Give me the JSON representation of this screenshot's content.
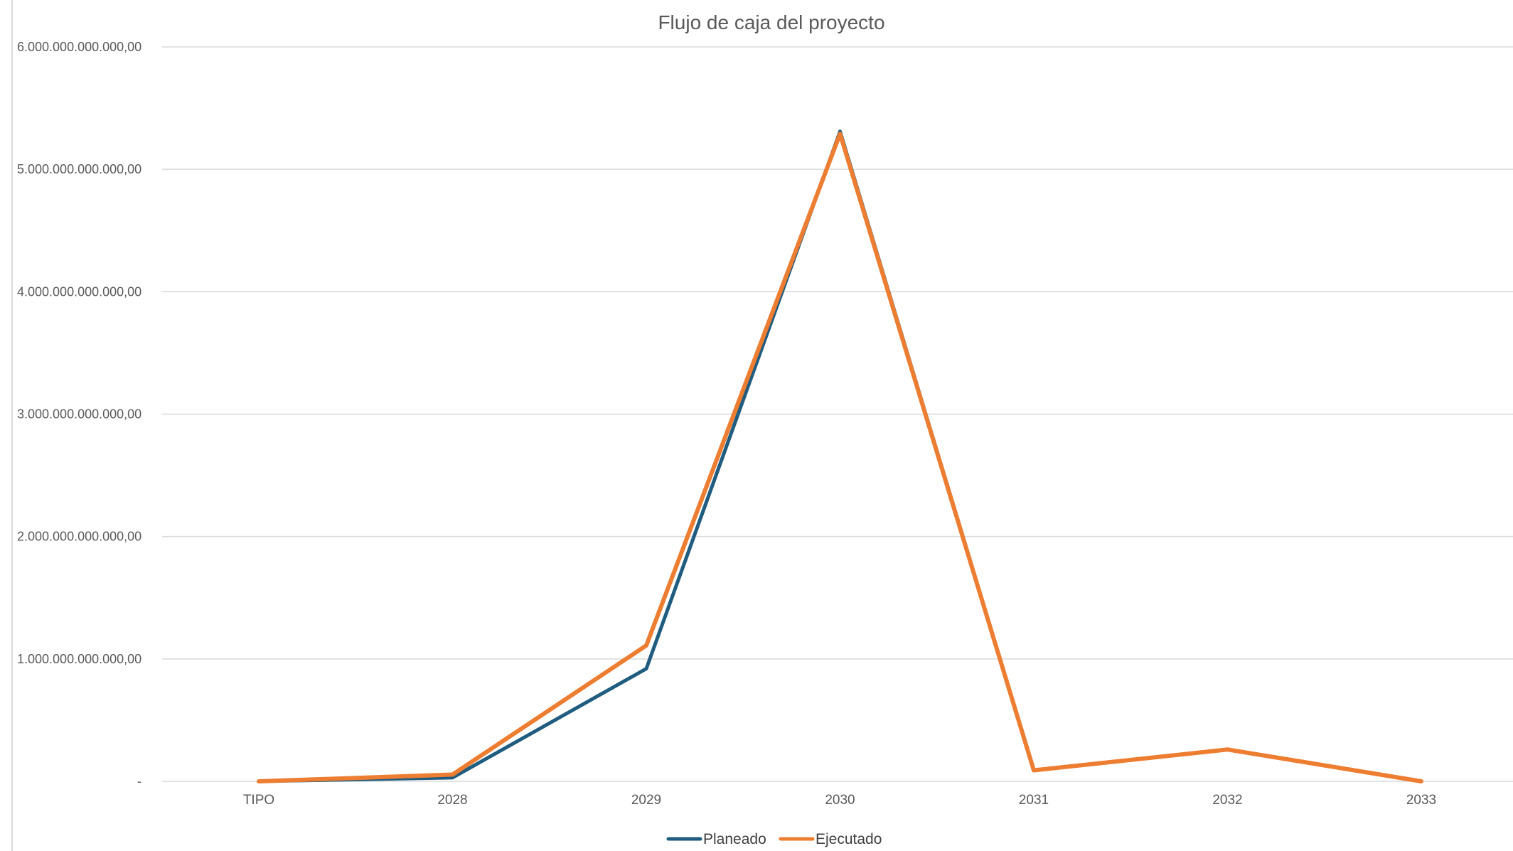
{
  "chart_data": {
    "type": "line",
    "title": "Flujo de caja del proyecto",
    "xlabel": "",
    "ylabel": "",
    "categories": [
      "TIPO",
      "2028",
      "2029",
      "2030",
      "2031",
      "2032",
      "2033"
    ],
    "ylim": [
      0,
      6000000000000
    ],
    "yticks": [
      {
        "value": 0,
        "label": "-"
      },
      {
        "value": 1000000000000,
        "label": "1.000.000.000.000,00"
      },
      {
        "value": 2000000000000,
        "label": "2.000.000.000.000,00"
      },
      {
        "value": 3000000000000,
        "label": "3.000.000.000.000,00"
      },
      {
        "value": 4000000000000,
        "label": "4.000.000.000.000,00"
      },
      {
        "value": 5000000000000,
        "label": "5.000.000.000.000,00"
      },
      {
        "value": 6000000000000,
        "label": "6.000.000.000.000,00"
      }
    ],
    "grid": true,
    "legend_position": "bottom",
    "series": [
      {
        "name": "Planeado",
        "color": "#1f5c7f",
        "values": [
          0,
          30000000000,
          920000000000,
          5310000000000,
          90000000000,
          260000000000,
          0
        ]
      },
      {
        "name": "Ejecutado",
        "color": "#ed7d31",
        "values": [
          0,
          55000000000,
          1110000000000,
          5290000000000,
          90000000000,
          260000000000,
          0
        ]
      }
    ]
  }
}
